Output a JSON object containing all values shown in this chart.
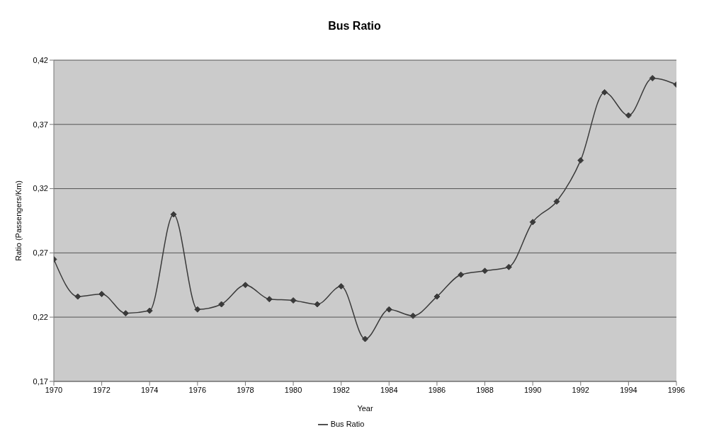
{
  "chart_data": {
    "type": "line",
    "title": "Bus Ratio",
    "xlabel": "Year",
    "ylabel": "Ratio (Passengers/Km)",
    "x": [
      1970,
      1971,
      1972,
      1973,
      1974,
      1975,
      1976,
      1977,
      1978,
      1979,
      1980,
      1981,
      1982,
      1983,
      1984,
      1985,
      1986,
      1987,
      1988,
      1989,
      1990,
      1991,
      1992,
      1993,
      1994,
      1995,
      1996
    ],
    "series": [
      {
        "name": "Bus Ratio",
        "color": "#3a3a3a",
        "values": [
          0.265,
          0.236,
          0.238,
          0.223,
          0.225,
          0.3,
          0.226,
          0.23,
          0.245,
          0.234,
          0.233,
          0.23,
          0.244,
          0.203,
          0.226,
          0.221,
          0.236,
          0.253,
          0.256,
          0.259,
          0.294,
          0.31,
          0.342,
          0.395,
          0.377,
          0.406,
          0.401
        ]
      }
    ],
    "xlim": [
      1970,
      1996
    ],
    "xticks": [
      1970,
      1972,
      1974,
      1976,
      1978,
      1980,
      1982,
      1984,
      1986,
      1988,
      1990,
      1992,
      1994,
      1996
    ],
    "ylim": [
      0.17,
      0.42
    ],
    "yticks": [
      {
        "value": 0.17,
        "label": "0,17"
      },
      {
        "value": 0.22,
        "label": "0,22"
      },
      {
        "value": 0.27,
        "label": "0,27"
      },
      {
        "value": 0.32,
        "label": "0,32"
      },
      {
        "value": 0.37,
        "label": "0,37"
      },
      {
        "value": 0.42,
        "label": "0,42"
      }
    ],
    "grid": "y",
    "legend": "bottom",
    "marker": "diamond",
    "line_style": "solid"
  }
}
